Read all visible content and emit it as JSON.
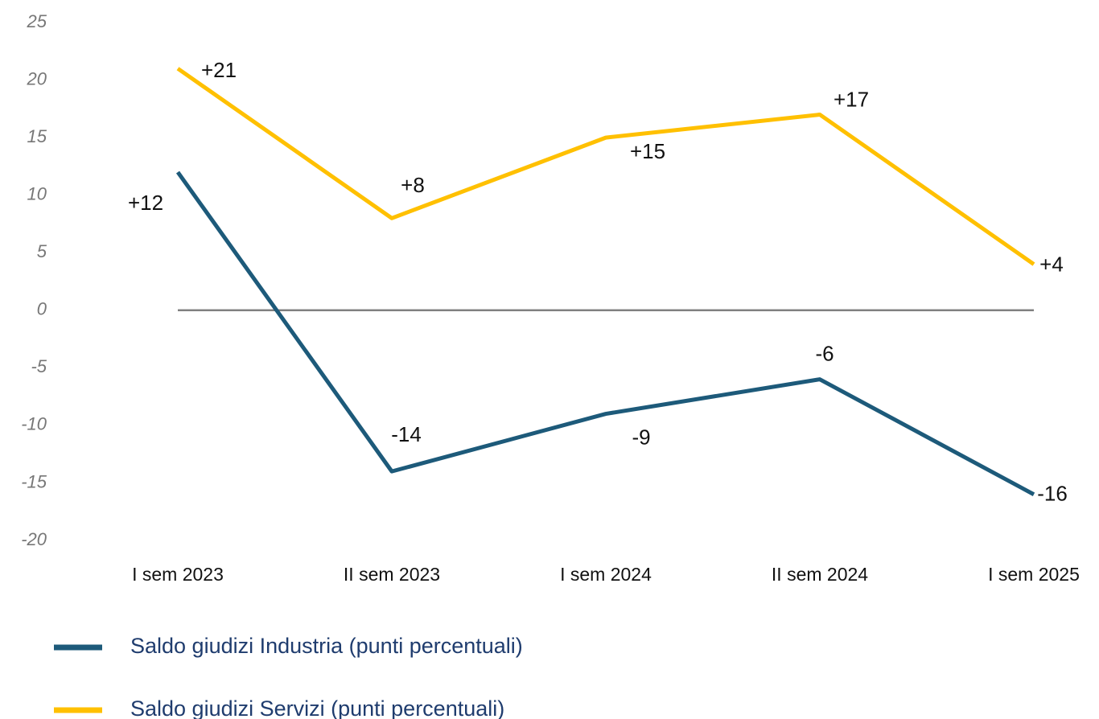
{
  "chart_data": {
    "type": "line",
    "categories": [
      "I sem 2023",
      "II sem 2023",
      "I sem 2024",
      "II sem 2024",
      "I sem 2025"
    ],
    "series": [
      {
        "name": "Saldo giudizi Industria (punti percentuali)",
        "color": "#1d5a7a",
        "values": [
          12,
          -14,
          -9,
          -6,
          -16
        ],
        "value_labels": [
          "+12",
          "-14",
          "-9",
          "-6",
          "-16"
        ]
      },
      {
        "name": "Saldo giudizi Servizi (punti percentuali)",
        "color": "#ffc000",
        "values": [
          21,
          8,
          15,
          17,
          4
        ],
        "value_labels": [
          "+21",
          "+8",
          "+15",
          "+17",
          "+4"
        ]
      }
    ],
    "ylim": [
      -20,
      25
    ],
    "yticks": [
      -20,
      -15,
      -10,
      -5,
      0,
      5,
      10,
      15,
      20,
      25
    ],
    "grid": false
  }
}
